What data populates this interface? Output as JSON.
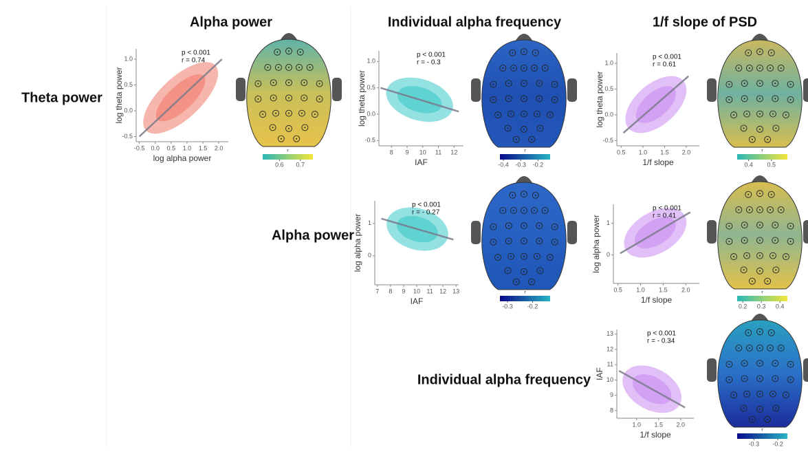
{
  "header": {
    "columns": [
      "Alpha power",
      "Individual alpha frequency",
      "1/f slope of PSD"
    ],
    "rows": [
      "Theta power",
      "Alpha power",
      "Individual alpha frequency"
    ]
  },
  "chart_data": [
    {
      "type": "scatter",
      "x_label": "log alpha power",
      "y_label": "log theta power",
      "annotations": [
        "p < 0.001",
        "r = 0.74"
      ],
      "color": "#f07a6a",
      "xlim": [
        -0.6,
        2.3
      ],
      "ylim": [
        -0.6,
        1.2
      ],
      "xticks": [
        -0.5,
        {
          "value": 0,
          "label": "0.0"
        },
        0.5,
        {
          "value": 1,
          "label": "1.0"
        },
        1.5,
        {
          "value": 2,
          "label": "2.0"
        }
      ],
      "yticks": [
        -0.5,
        {
          "value": 0,
          "label": "0.0"
        },
        0.5,
        {
          "value": 1,
          "label": "1.0"
        }
      ],
      "fit_line": {
        "x": [
          -0.5,
          2.1
        ],
        "y": [
          -0.5,
          1.0
        ]
      }
    },
    {
      "type": "topomap",
      "colorbar_label": "r",
      "clim": [
        0.52,
        0.76
      ],
      "cticks": [
        0.6,
        0.7
      ],
      "cmap": [
        "#2ab7b8",
        "#f4e63a"
      ],
      "head_colors": [
        "#5fb3a8",
        "#c9c05a",
        "#e6c24a"
      ]
    },
    {
      "type": "scatter",
      "x_label": "IAF",
      "y_label": "log theta power",
      "annotations": [
        "p < 0.001",
        "r = - 0.3"
      ],
      "color": "#3cc8c8",
      "xlim": [
        7.2,
        12.6
      ],
      "ylim": [
        -0.6,
        1.2
      ],
      "xticks": [
        8,
        9,
        10,
        11,
        12
      ],
      "yticks": [
        -0.5,
        {
          "value": 0,
          "label": "0.0"
        },
        0.5,
        {
          "value": 1,
          "label": "1.0"
        }
      ],
      "fit_line": {
        "x": [
          7.3,
          12.3
        ],
        "y": [
          0.5,
          0.05
        ]
      }
    },
    {
      "type": "topomap",
      "colorbar_label": "r",
      "clim": [
        -0.42,
        -0.13
      ],
      "cticks": [
        -0.4,
        -0.3,
        -0.2
      ],
      "cmap": [
        "#0a0a8a",
        "#27b4c4"
      ],
      "head_colors": [
        "#2c66c4",
        "#1f50b2",
        "#2256b8"
      ]
    },
    {
      "type": "scatter",
      "x_label": "IAF",
      "y_label": "log alpha power",
      "annotations": [
        "p < 0.001",
        "r = - 0.27"
      ],
      "color": "#3cc8c8",
      "xlim": [
        6.8,
        13.2
      ],
      "ylim": [
        -0.9,
        1.7
      ],
      "xticks": [
        7,
        8,
        9,
        10,
        11,
        12,
        13
      ],
      "yticks": [
        0,
        1
      ],
      "fit_line": {
        "x": [
          7.3,
          12.8
        ],
        "y": [
          1.15,
          0.5
        ]
      }
    },
    {
      "type": "topomap",
      "colorbar_label": "r",
      "clim": [
        -0.33,
        -0.13
      ],
      "cticks": [
        -0.3,
        -0.2
      ],
      "cmap": [
        "#0a0a8a",
        "#27b4c4"
      ],
      "head_colors": [
        "#2d68c8",
        "#2660c0",
        "#1f56b8"
      ]
    },
    {
      "type": "scatter",
      "x_label": "1/f slope",
      "y_label": "log theta power",
      "annotations": [
        "p < 0.001",
        "r = 0.61"
      ],
      "color": "#c88cf0",
      "xlim": [
        0.4,
        2.3
      ],
      "ylim": [
        -0.6,
        1.2
      ],
      "xticks": [
        0.5,
        {
          "value": 1,
          "label": "1.0"
        },
        1.5,
        {
          "value": 2,
          "label": "2.0"
        }
      ],
      "yticks": [
        -0.5,
        {
          "value": 0,
          "label": "0.0"
        },
        0.5,
        {
          "value": 1,
          "label": "1.0"
        }
      ],
      "fit_line": {
        "x": [
          0.55,
          2.05
        ],
        "y": [
          -0.35,
          0.75
        ]
      }
    },
    {
      "type": "topomap",
      "colorbar_label": "r",
      "clim": [
        0.35,
        0.57
      ],
      "cticks": [
        0.4,
        0.5
      ],
      "cmap": [
        "#2ab7b8",
        "#f4e63a"
      ],
      "head_colors": [
        "#c8b860",
        "#6fb0a0",
        "#d8bf50"
      ]
    },
    {
      "type": "scatter",
      "x_label": "1/f slope",
      "y_label": "log alpha power",
      "annotations": [
        "p < 0.001",
        "r = 0.41"
      ],
      "color": "#c88cf0",
      "xlim": [
        0.4,
        2.3
      ],
      "ylim": [
        -0.9,
        1.6
      ],
      "xticks": [
        0.5,
        {
          "value": 1,
          "label": "1.0"
        },
        1.5,
        {
          "value": 2,
          "label": "2.0"
        }
      ],
      "yticks": [
        0,
        1
      ],
      "fit_line": {
        "x": [
          0.55,
          2.1
        ],
        "y": [
          0.05,
          1.35
        ]
      }
    },
    {
      "type": "topomap",
      "colorbar_label": "r",
      "clim": [
        0.17,
        0.44
      ],
      "cticks": [
        0.2,
        0.3,
        0.4
      ],
      "cmap": [
        "#2ab7b8",
        "#f4e63a"
      ],
      "head_colors": [
        "#d8bd50",
        "#8fb590",
        "#e3c24a"
      ]
    },
    {
      "type": "scatter",
      "x_label": "1/f slope",
      "y_label": "IAF",
      "annotations": [
        "p < 0.001",
        "r = - 0.34"
      ],
      "color": "#c88cf0",
      "xlim": [
        0.55,
        2.3
      ],
      "ylim": [
        7.5,
        13.3
      ],
      "xticks": [
        {
          "value": 1,
          "label": "1.0"
        },
        1.5,
        {
          "value": 2,
          "label": "2.0"
        }
      ],
      "yticks": [
        8,
        9,
        10,
        11,
        12,
        13
      ],
      "fit_line": {
        "x": [
          0.6,
          2.1
        ],
        "y": [
          10.6,
          8.2
        ]
      }
    },
    {
      "type": "topomap",
      "colorbar_label": "r",
      "clim": [
        -0.37,
        -0.16
      ],
      "cticks": [
        -0.3,
        -0.2
      ],
      "cmap": [
        "#0a0a8a",
        "#27b4c4"
      ],
      "head_colors": [
        "#2aa0c0",
        "#2a70c8",
        "#1a2d9a"
      ]
    }
  ]
}
